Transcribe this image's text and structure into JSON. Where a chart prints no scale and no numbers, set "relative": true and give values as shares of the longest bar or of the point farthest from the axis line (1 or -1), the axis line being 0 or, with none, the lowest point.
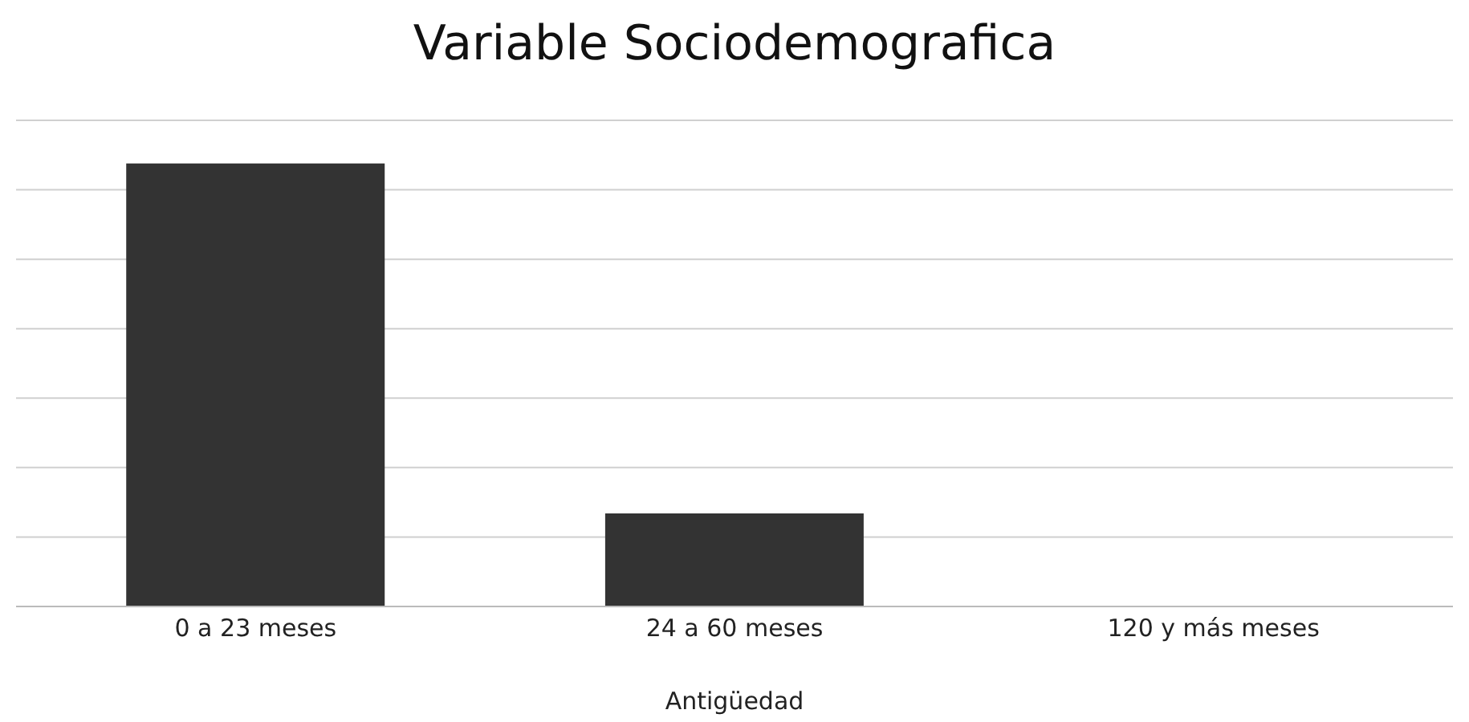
{
  "chart_data": {
    "type": "bar",
    "title": "Variable Sociodemografica",
    "xlabel": "Antigüedad",
    "categories": [
      "0 a 23 meses",
      "24 a 60 meses",
      "120 y más meses"
    ],
    "values": [
      1,
      0.21,
      0
    ],
    "color": "#333333",
    "relative": true,
    "grid": "y"
  }
}
